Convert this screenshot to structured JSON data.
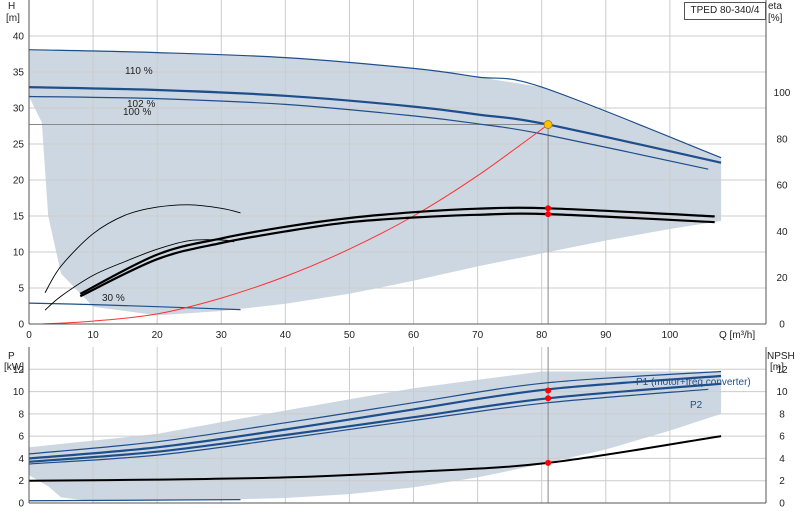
{
  "model": "TPED 80-340/4",
  "colors": {
    "envelope": "#cdd7e1",
    "envelope_light": "#e6eef6",
    "curve_blue": "#1f4e8c",
    "system_curve": "#ff3030",
    "eta_curve": "#000000",
    "grid": "#cccccc",
    "op_point": "#ffc000",
    "marker": "#ff0000"
  },
  "chart_data": [
    {
      "type": "line",
      "title": "",
      "xlabel": "Q [m³/h]",
      "ylabel_left": [
        "H",
        "[m]"
      ],
      "ylabel_right": [
        "eta",
        "[%]"
      ],
      "xlim": [
        0,
        115
      ],
      "ylim_left": [
        0,
        45
      ],
      "ylim_right": [
        0,
        140
      ],
      "xticks": [
        "0",
        "10",
        "20",
        "30",
        "40",
        "50",
        "60",
        "70",
        "80",
        "90",
        "100"
      ],
      "yticks_left": [
        "0",
        "5",
        "10",
        "15",
        "20",
        "25",
        "30",
        "35",
        "40"
      ],
      "yticks_right": [
        "0",
        "20",
        "40",
        "60",
        "80",
        "100"
      ],
      "grid": true,
      "series": [
        {
          "name": "110 %",
          "axis": "left",
          "style": "blue",
          "x": [
            0,
            20,
            40,
            60,
            70,
            80,
            108
          ],
          "y": [
            38.1,
            37.7,
            37.0,
            35.5,
            34.3,
            32.9,
            23.1
          ]
        },
        {
          "name": "102 %",
          "axis": "left",
          "style": "blue-thick",
          "x": [
            0,
            20,
            40,
            60,
            70,
            81,
            108
          ],
          "y": [
            32.9,
            32.5,
            31.7,
            30.2,
            29.1,
            27.7,
            22.4
          ]
        },
        {
          "name": "100 %",
          "axis": "left",
          "style": "blue",
          "x": [
            0,
            20,
            40,
            60,
            70,
            80,
            106
          ],
          "y": [
            31.6,
            31.3,
            30.5,
            28.9,
            27.8,
            26.4,
            21.5
          ]
        },
        {
          "name": "30 %",
          "axis": "left",
          "style": "blue",
          "x": [
            0,
            10,
            20,
            33
          ],
          "y": [
            2.9,
            2.7,
            2.4,
            2.0
          ]
        },
        {
          "name": "",
          "axis": "left",
          "style": "system",
          "x": [
            2,
            10,
            20,
            30,
            40,
            50,
            60,
            70,
            81
          ],
          "y": [
            0,
            0.4,
            1.4,
            3.6,
            6.6,
            10.4,
            15.0,
            20.6,
            27.7
          ]
        },
        {
          "name": "",
          "axis": "right",
          "style": "eta-thin",
          "x": [
            2.5,
            5,
            10,
            15,
            20,
            25,
            30,
            33
          ],
          "y": [
            13.5,
            25,
            39,
            47,
            50.5,
            51.5,
            50,
            48
          ]
        },
        {
          "name": "",
          "axis": "right",
          "style": "eta-thin",
          "x": [
            2.5,
            5,
            10,
            15,
            20,
            25,
            30,
            32
          ],
          "y": [
            6,
            12,
            21,
            27,
            32.3,
            36,
            36.3,
            35.5
          ]
        },
        {
          "name": "",
          "axis": "right",
          "style": "eta-thick",
          "x": [
            8,
            20,
            30,
            40,
            50,
            60,
            70,
            81,
            107
          ],
          "y": [
            13,
            30,
            37,
            42,
            45.8,
            48.3,
            49.8,
            50,
            46.5
          ]
        },
        {
          "name": "",
          "axis": "right",
          "style": "eta-thick",
          "x": [
            8,
            20,
            30,
            40,
            50,
            60,
            70,
            81,
            107
          ],
          "y": [
            12,
            28,
            35,
            40,
            44,
            46,
            47.2,
            47.5,
            44
          ]
        }
      ],
      "envelope": {
        "x": [
          0,
          20,
          40,
          60,
          70,
          80,
          108,
          108,
          100,
          90,
          80,
          70,
          60,
          50,
          40,
          30,
          20,
          10,
          5,
          3,
          2,
          0
        ],
        "y": [
          38.1,
          37.7,
          37.0,
          35.5,
          34.3,
          32.9,
          23.1,
          14.3,
          13.2,
          11.6,
          9.8,
          8.0,
          6.0,
          4.2,
          2.8,
          1.8,
          1.2,
          2.4,
          7.0,
          15.0,
          28.0,
          31.6
        ]
      },
      "operating_point": {
        "x": 81,
        "y": 27.7
      },
      "eta_markers": [
        {
          "x": 81,
          "y": 50
        },
        {
          "x": 81,
          "y": 47.5
        }
      ]
    },
    {
      "type": "line",
      "title": "",
      "xlabel": "",
      "ylabel_left": [
        "P",
        "[kW]"
      ],
      "ylabel_right": [
        "NPSH",
        "[m]"
      ],
      "xlim": [
        0,
        115
      ],
      "ylim_left": [
        0,
        14
      ],
      "ylim_right": [
        0,
        14
      ],
      "yticks_left": [
        "0",
        "2",
        "4",
        "6",
        "8",
        "10",
        "12"
      ],
      "yticks_right": [
        "0",
        "2",
        "4",
        "6",
        "8",
        "10",
        "12"
      ],
      "grid": true,
      "series": [
        {
          "name": "P1 (motor+freq.converter)",
          "axis": "left",
          "style": "blue-thick",
          "x": [
            0,
            20,
            40,
            60,
            81,
            108
          ],
          "y": [
            4.0,
            5.0,
            6.6,
            8.4,
            10.2,
            11.4
          ]
        },
        {
          "name": "P2",
          "axis": "left",
          "style": "blue-thick",
          "x": [
            0,
            20,
            40,
            60,
            81,
            108
          ],
          "y": [
            3.7,
            4.6,
            6.1,
            7.7,
            9.4,
            10.7
          ]
        },
        {
          "name": "",
          "axis": "left",
          "style": "blue",
          "x": [
            0,
            20,
            40,
            60,
            81,
            108
          ],
          "y": [
            4.4,
            5.5,
            7.2,
            9.0,
            10.8,
            11.8
          ]
        },
        {
          "name": "",
          "axis": "left",
          "style": "blue",
          "x": [
            0,
            20,
            40,
            60,
            81,
            106
          ],
          "y": [
            3.5,
            4.3,
            5.8,
            7.4,
            9.0,
            10.2
          ]
        },
        {
          "name": "",
          "axis": "left",
          "style": "blue",
          "x": [
            0,
            33
          ],
          "y": [
            0.2,
            0.3
          ]
        },
        {
          "name": "",
          "axis": "right",
          "style": "npsh",
          "x": [
            0,
            20,
            40,
            60,
            81,
            108
          ],
          "y": [
            2.0,
            2.1,
            2.3,
            2.8,
            3.6,
            6.0
          ]
        }
      ],
      "envelope": {
        "x": [
          0,
          20,
          40,
          60,
          80,
          108,
          108,
          100,
          90,
          80,
          70,
          60,
          50,
          40,
          30,
          20,
          10,
          5,
          3,
          0
        ],
        "y": [
          5.0,
          6.2,
          8.3,
          10.3,
          11.8,
          11.8,
          8.0,
          6.5,
          4.8,
          3.5,
          2.3,
          1.4,
          0.8,
          0.45,
          0.3,
          0.2,
          0.15,
          0.5,
          1.5,
          2.5
        ]
      },
      "op_markers": [
        {
          "x": 81,
          "y": 10.1
        },
        {
          "x": 81,
          "y": 9.4
        },
        {
          "x": 81,
          "y": 3.6
        }
      ]
    }
  ]
}
